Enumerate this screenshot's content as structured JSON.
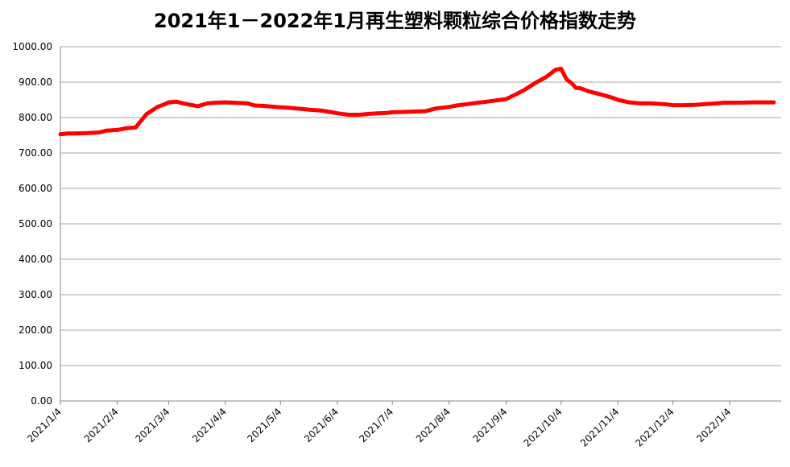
{
  "chart_data": {
    "type": "line",
    "title": "2021年1－2022年1月再生塑料颗粒综合价格指数走势",
    "xlabel": "",
    "ylabel": "",
    "ylim": [
      0,
      1000
    ],
    "yticks": [
      "0.00",
      "100.00",
      "200.00",
      "300.00",
      "400.00",
      "500.00",
      "600.00",
      "700.00",
      "800.00",
      "900.00",
      "1000.00"
    ],
    "xticks": [
      "2021/1/4",
      "2021/2/4",
      "2021/3/4",
      "2021/4/4",
      "2021/5/4",
      "2021/6/4",
      "2021/7/4",
      "2021/8/4",
      "2021/9/4",
      "2021/10/4",
      "2021/11/4",
      "2021/12/4",
      "2022/1/4"
    ],
    "grid": true,
    "legend": "none",
    "line_color": "#ff0000",
    "series": [
      {
        "x": [
          "2021/1/4",
          "2021/1/8",
          "2021/1/12",
          "2021/1/18",
          "2021/1/25",
          "2021/1/29",
          "2021/2/4",
          "2021/2/9",
          "2021/2/14",
          "2021/2/20",
          "2021/2/26",
          "2021/3/2",
          "2021/3/4",
          "2021/3/8",
          "2021/3/12",
          "2021/3/16",
          "2021/3/20",
          "2021/3/25",
          "2021/3/30",
          "2021/4/4",
          "2021/4/8",
          "2021/4/12",
          "2021/4/16",
          "2021/4/20",
          "2021/4/25",
          "2021/5/1",
          "2021/5/4",
          "2021/5/8",
          "2021/5/14",
          "2021/5/20",
          "2021/5/26",
          "2021/6/1",
          "2021/6/4",
          "2021/6/10",
          "2021/6/16",
          "2021/6/20",
          "2021/6/26",
          "2021/7/1",
          "2021/7/4",
          "2021/7/10",
          "2021/7/16",
          "2021/7/22",
          "2021/7/28",
          "2021/8/4",
          "2021/8/8",
          "2021/8/14",
          "2021/8/20",
          "2021/8/26",
          "2021/9/1",
          "2021/9/4",
          "2021/9/8",
          "2021/9/14",
          "2021/9/20",
          "2021/9/26",
          "2021/10/1",
          "2021/10/4",
          "2021/10/7",
          "2021/10/10",
          "2021/10/12",
          "2021/10/15",
          "2021/10/18",
          "2021/10/22",
          "2021/10/28",
          "2021/11/2",
          "2021/11/4",
          "2021/11/10",
          "2021/11/16",
          "2021/11/22",
          "2021/11/28",
          "2021/12/1",
          "2021/12/4",
          "2021/12/10",
          "2021/12/16",
          "2021/12/22",
          "2021/12/28",
          "2022/1/1",
          "2022/1/4",
          "2022/1/10",
          "2022/1/16",
          "2022/1/22",
          "2022/1/28"
        ],
        "values": [
          753,
          755,
          755,
          756,
          758,
          763,
          765,
          770,
          772,
          810,
          830,
          838,
          843,
          845,
          840,
          836,
          832,
          840,
          842,
          843,
          842,
          841,
          840,
          834,
          833,
          830,
          829,
          828,
          825,
          822,
          820,
          815,
          812,
          808,
          808,
          810,
          812,
          813,
          815,
          816,
          817,
          818,
          826,
          830,
          834,
          838,
          842,
          846,
          850,
          852,
          862,
          878,
          898,
          915,
          935,
          938,
          908,
          896,
          884,
          882,
          876,
          870,
          862,
          854,
          850,
          843,
          840,
          840,
          838,
          837,
          835,
          835,
          836,
          838,
          840,
          842,
          842,
          842,
          843,
          843,
          843
        ]
      }
    ]
  }
}
